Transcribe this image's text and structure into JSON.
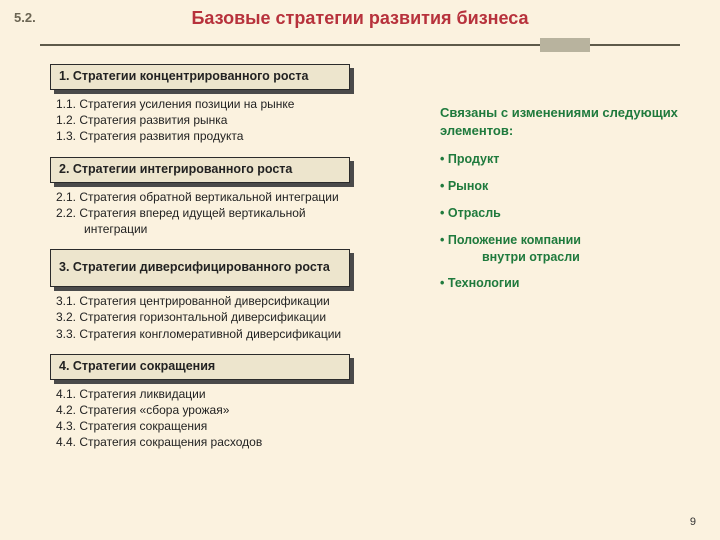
{
  "section_number": "5.2.",
  "title": "Базовые стратегии развития бизнеса",
  "page_number": "9",
  "colors": {
    "background": "#fbf2df",
    "title": "#b7323c",
    "rule": "#5e5a4a",
    "block_face": "#ede5cd",
    "block_shadow": "#4a4a4a",
    "green": "#1f7a3d"
  },
  "blocks": [
    {
      "header": "1. Стратегии концентрированного роста",
      "tall": false,
      "items": [
        "1.1. Стратегия усиления позиции на рынке",
        "1.2. Стратегия развития рынка",
        "1.3. Стратегия развития продукта"
      ]
    },
    {
      "header": "2. Стратегии интегрированного роста",
      "tall": false,
      "items": [
        "2.1. Стратегия обратной вертикальной интеграции",
        "2.2. Стратегия вперед идущей вертикальной\n        интеграции"
      ]
    },
    {
      "header": "3. Стратегии диверсифицированного роста",
      "tall": true,
      "items": [
        "3.1. Стратегия центрированной диверсификации",
        "3.2. Стратегия горизонтальной диверсификации",
        "3.3. Стратегия конгломеративной диверсификации"
      ]
    },
    {
      "header": "4. Стратегии сокращения",
      "tall": false,
      "items": [
        "4.1. Стратегия ликвидации",
        "4.2. Стратегия «сбора урожая»",
        "4.3. Стратегия сокращения",
        "4.4. Стратегия сокращения расходов"
      ]
    }
  ],
  "right": {
    "title": "Связаны с изменениями следующих элементов:",
    "bullets": [
      "Продукт",
      "Рынок",
      "Отрасль",
      "Положение компании\n   внутри отрасли",
      "Технологии"
    ]
  }
}
